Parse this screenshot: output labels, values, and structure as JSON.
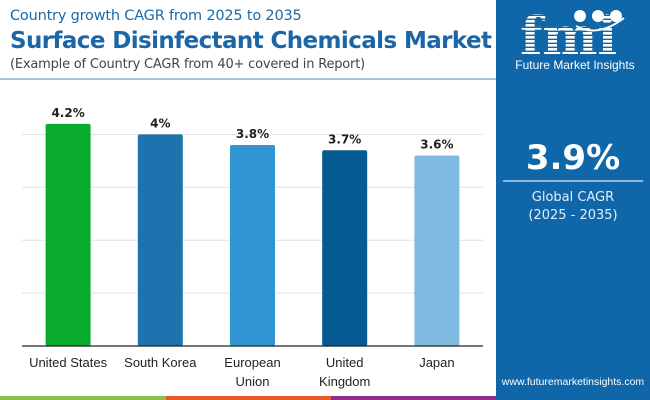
{
  "header": {
    "subtitle": "Country growth CAGR from 2025 to 2035",
    "title": "Surface Disinfectant Chemicals Market",
    "note": "(Example of Country CAGR from 40+ covered in Report)"
  },
  "sidebar": {
    "logo_mark": "fmi",
    "logo_text": "Future Market Insights",
    "global_cagr_value": "3.9%",
    "global_cagr_label": "Global CAGR",
    "global_cagr_period": "(2025 - 2035)",
    "website": "www.futuremarketinsights.com",
    "background_color": "#0f66a8"
  },
  "footer_stripes": [
    "#8bc34a",
    "#e8582b",
    "#8a2f88",
    "#0f66a8"
  ],
  "chart_data": {
    "type": "bar",
    "title": "Surface Disinfectant Chemicals Market",
    "subtitle": "Country growth CAGR from 2025 to 2035",
    "categories": [
      "United States",
      "South Korea",
      "European Union",
      "United Kingdom",
      "Japan"
    ],
    "category_lines": [
      [
        "United States"
      ],
      [
        "South Korea"
      ],
      [
        "European",
        "Union"
      ],
      [
        "United",
        "Kingdom"
      ],
      [
        "Japan"
      ]
    ],
    "values": [
      4.2,
      4.0,
      3.8,
      3.7,
      3.6
    ],
    "data_labels": [
      "4.2%",
      "4%",
      "3.8%",
      "3.7%",
      "3.6%"
    ],
    "colors": [
      "#0aab2d",
      "#1e73ae",
      "#3194d3",
      "#045a91",
      "#7fbae1"
    ],
    "xlabel": "",
    "ylabel": "",
    "ylim": [
      0,
      4.2
    ],
    "gridlines": [
      1,
      2,
      3,
      4
    ],
    "grid": true,
    "legend": "none"
  }
}
